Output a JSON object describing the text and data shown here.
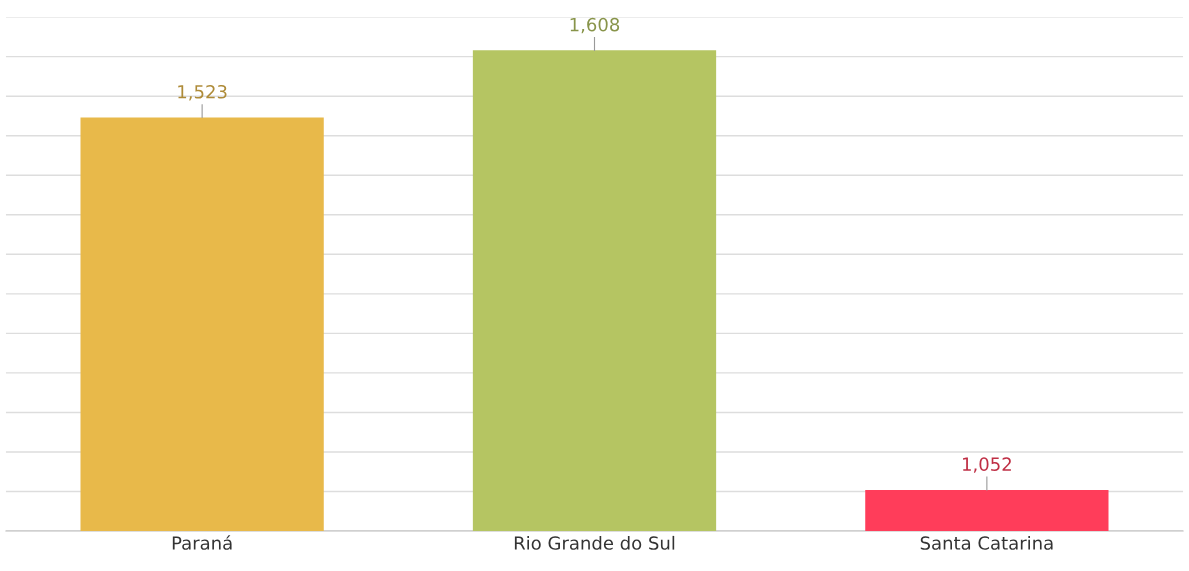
{
  "chart_data": {
    "type": "bar",
    "categories": [
      "Paraná",
      "Rio Grande do Sul",
      "Santa Catarina"
    ],
    "values": [
      1523,
      1608,
      1052
    ],
    "colors": [
      "#e8b94a",
      "#b5c562",
      "#ff3d5a"
    ],
    "value_labels": [
      "1,523",
      "1,608",
      "1,052"
    ],
    "ylim": [
      1000,
      1650
    ],
    "yticks": [
      {
        "value": 1000,
        "label": null
      },
      {
        "value": 1050,
        "label": null
      },
      {
        "value": 1100,
        "label": null
      },
      {
        "value": 1150,
        "label": null
      },
      {
        "value": 1200,
        "label": null
      },
      {
        "value": 1250,
        "label": null
      },
      {
        "value": 1300,
        "label": null
      },
      {
        "value": 1350,
        "label": null
      },
      {
        "value": 1400,
        "label": null
      },
      {
        "value": 1450,
        "label": null
      },
      {
        "value": 1500,
        "label": null
      },
      {
        "value": 1550,
        "label": null
      },
      {
        "value": 1600,
        "label": null
      },
      {
        "value": 1650,
        "label": null
      }
    ],
    "tick_labels": "x",
    "grid": "y"
  }
}
